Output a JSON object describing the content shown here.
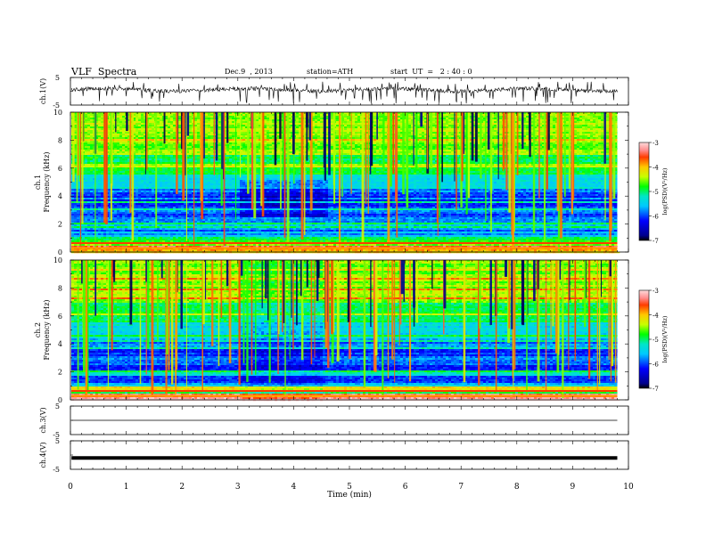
{
  "header": {
    "title": "VLF  Spectra",
    "date": "Dec.9  , 2013",
    "station": "station=ATH",
    "start": "start  UT  =   2 : 40 : 0"
  },
  "chart_data": [
    {
      "type": "line",
      "panel": "ch1-waveform",
      "ylabel": "ch.1(V)",
      "ylim": [
        -5,
        5
      ],
      "yticks": [
        "5",
        "-5"
      ],
      "xlim": [
        0,
        10
      ],
      "description_of_trace": "noisy baseline near 0.5 V with frequent negative spikes to about -4 V, data to 9.8 min"
    },
    {
      "type": "heatmap",
      "panel": "ch1-spectrogram",
      "ylabel_top": "ch.1",
      "ylabel": "Frequency  (kHz)",
      "ylim": [
        0,
        10
      ],
      "yticks": [
        "0",
        "2",
        "4",
        "6",
        "8",
        "10"
      ],
      "xlim": [
        0,
        10
      ],
      "data_end_min": 9.8,
      "colorbar": {
        "label": "log(PSD)(V²/Hz)",
        "range": [
          -7,
          -3
        ],
        "ticks": [
          "-3",
          "-4",
          "-5",
          "-6",
          "-7"
        ]
      }
    },
    {
      "type": "heatmap",
      "panel": "ch2-spectrogram",
      "ylabel_top": "ch.2",
      "ylabel": "Frequency  (kHz)",
      "ylim": [
        0,
        10
      ],
      "yticks": [
        "0",
        "2",
        "4",
        "6",
        "8",
        "10"
      ],
      "xlim": [
        0,
        10
      ],
      "data_end_min": 9.8,
      "colorbar": {
        "label": "log(PSD)(V²/Hz)",
        "range": [
          -7,
          -3
        ],
        "ticks": [
          "-3",
          "-4",
          "-5",
          "-6",
          "-7"
        ]
      }
    },
    {
      "type": "line",
      "panel": "ch3-waveform",
      "ylabel": "ch.3(V)",
      "ylim": [
        -5,
        5
      ],
      "yticks": [
        "5",
        "-5"
      ],
      "level": 0
    },
    {
      "type": "line",
      "panel": "ch4-waveform",
      "ylabel": "ch.4(V)",
      "ylim": [
        -5,
        5
      ],
      "yticks": [
        "5",
        "-5"
      ],
      "level": -1
    }
  ],
  "xaxis": {
    "label": "Time  (min)",
    "ticks": [
      "0",
      "1",
      "2",
      "3",
      "4",
      "5",
      "6",
      "7",
      "8",
      "9",
      "10"
    ]
  }
}
